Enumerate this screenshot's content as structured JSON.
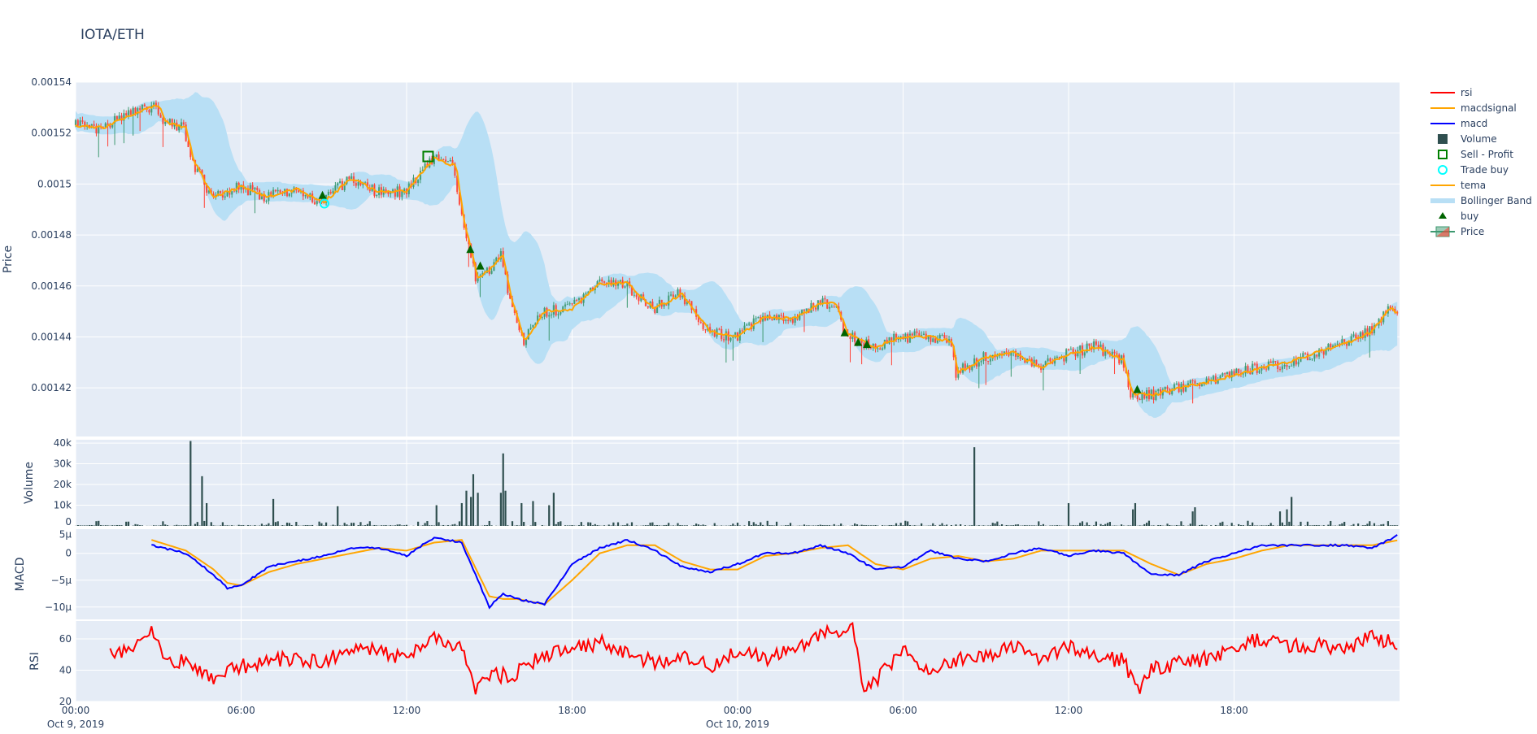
{
  "title": "IOTA/ETH",
  "colors": {
    "plot_bg": "#e5ecf6",
    "grid": "#ffffff",
    "increasing": "#3D9970",
    "decreasing": "#FF4136",
    "tema": "#FFA500",
    "macdsignal": "#FFA500",
    "macd": "#0000FF",
    "rsi": "#FF0000",
    "bollinger": "#b8dff5",
    "volume": "#2F4F4F",
    "buy": "#006400",
    "sell_profit": "#008000",
    "trade_buy": "#00FFFF"
  },
  "legend": {
    "placement": "right",
    "items": [
      {
        "label": "rsi",
        "icon": "line",
        "color": "#FF0000"
      },
      {
        "label": "macdsignal",
        "icon": "line",
        "color": "#FFA500"
      },
      {
        "label": "macd",
        "icon": "line",
        "color": "#0000FF"
      },
      {
        "label": "Volume",
        "icon": "square-filled",
        "color": "#2F4F4F"
      },
      {
        "label": "Sell - Profit",
        "icon": "square-open",
        "color": "#008000"
      },
      {
        "label": "Trade buy",
        "icon": "circle-open",
        "color": "#00FFFF"
      },
      {
        "label": "tema",
        "icon": "line",
        "color": "#FFA500"
      },
      {
        "label": "Bollinger Band",
        "icon": "band",
        "color": "#b8dff5"
      },
      {
        "label": "buy",
        "icon": "triangle-up",
        "color": "#006400"
      },
      {
        "label": "Price",
        "icon": "candlestick",
        "color": "#3D9970"
      }
    ]
  },
  "chart_data": {
    "type": "candlestick",
    "interval": "5m",
    "x_range": [
      "Oct 9, 2019 00:00",
      "Oct 11, 2019 00:00"
    ],
    "x_ticks": [
      {
        "time": "00:00",
        "date": "Oct 9, 2019",
        "hour": 0
      },
      {
        "time": "06:00",
        "date": "",
        "hour": 6
      },
      {
        "time": "12:00",
        "date": "",
        "hour": 12
      },
      {
        "time": "18:00",
        "date": "",
        "hour": 18
      },
      {
        "time": "00:00",
        "date": "Oct 10, 2019",
        "hour": 24
      },
      {
        "time": "06:00",
        "date": "",
        "hour": 30
      },
      {
        "time": "12:00",
        "date": "",
        "hour": 36
      },
      {
        "time": "18:00",
        "date": "",
        "hour": 42
      }
    ],
    "panels": {
      "price": {
        "ylabel": "Price",
        "ylim": [
          0.0014009,
          0.00154
        ],
        "ticks": [
          "0.00142",
          "0.00144",
          "0.00146",
          "0.00148",
          "0.0015",
          "0.00152",
          "0.00154"
        ],
        "tick_values": [
          0.00142,
          0.00144,
          0.00146,
          0.00148,
          0.0015,
          0.00152,
          0.00154
        ]
      },
      "volume": {
        "ylabel": "Volume",
        "ylim": [
          0,
          41600
        ],
        "ticks": [
          "0",
          "10k",
          "20k",
          "30k",
          "40k"
        ],
        "tick_values": [
          0,
          10000,
          20000,
          30000,
          40000
        ]
      },
      "macd": {
        "ylabel": "MACD",
        "ylim": [
          -12.3,
          4.5
        ],
        "unit": "μ",
        "ticks": [
          "5μ",
          "0",
          "−5μ",
          "−10μ"
        ],
        "tick_values": [
          5,
          0,
          -5,
          -10
        ]
      },
      "rsi": {
        "ylabel": "RSI",
        "ylim": [
          20,
          71.4
        ],
        "ticks": [
          "20",
          "40",
          "60"
        ],
        "tick_values": [
          20,
          40,
          60
        ]
      }
    },
    "price_hourly": [
      [
        0,
        0.001523
      ],
      [
        1,
        0.001522
      ],
      [
        2,
        0.001527
      ],
      [
        3,
        0.001531
      ],
      [
        3.3,
        0.001524
      ],
      [
        4,
        0.001522
      ],
      [
        4.3,
        0.001509
      ],
      [
        5,
        0.001495
      ],
      [
        6,
        0.001499
      ],
      [
        7,
        0.001495
      ],
      [
        8,
        0.001498
      ],
      [
        9,
        0.001493
      ],
      [
        10,
        0.001502
      ],
      [
        11,
        0.001497
      ],
      [
        12,
        0.001497
      ],
      [
        13,
        0.00151
      ],
      [
        13.8,
        0.001507
      ],
      [
        14.1,
        0.001485
      ],
      [
        14.6,
        0.001463
      ],
      [
        15,
        0.001466
      ],
      [
        15.5,
        0.001472
      ],
      [
        15.8,
        0.001455
      ],
      [
        16.3,
        0.001438
      ],
      [
        17,
        0.00145
      ],
      [
        18,
        0.001451
      ],
      [
        19,
        0.001461
      ],
      [
        20,
        0.001461
      ],
      [
        21,
        0.001451
      ],
      [
        22,
        0.001457
      ],
      [
        23,
        0.001442
      ],
      [
        24,
        0.00144
      ],
      [
        25,
        0.001448
      ],
      [
        26,
        0.001447
      ],
      [
        27,
        0.001453
      ],
      [
        27.6,
        0.001453
      ],
      [
        28,
        0.001441
      ],
      [
        29,
        0.001436
      ],
      [
        30,
        0.00144
      ],
      [
        31,
        0.00144
      ],
      [
        31.8,
        0.001438
      ],
      [
        32,
        0.001426
      ],
      [
        33,
        0.001432
      ],
      [
        34,
        0.001434
      ],
      [
        35,
        0.001428
      ],
      [
        36,
        0.001433
      ],
      [
        37,
        0.001436
      ],
      [
        38,
        0.001431
      ],
      [
        38.3,
        0.001418
      ],
      [
        39,
        0.001417
      ],
      [
        40,
        0.00142
      ],
      [
        41,
        0.001422
      ],
      [
        42,
        0.001425
      ],
      [
        43,
        0.001428
      ],
      [
        44,
        0.00143
      ],
      [
        45,
        0.001434
      ],
      [
        46,
        0.001437
      ],
      [
        47,
        0.001442
      ],
      [
        47.7,
        0.001452
      ],
      [
        48,
        0.001448
      ]
    ],
    "volume_spikes": [
      [
        4.15,
        41000
      ],
      [
        4.55,
        24000
      ],
      [
        4.75,
        11000
      ],
      [
        7.2,
        13000
      ],
      [
        9.5,
        9500
      ],
      [
        13.1,
        10000
      ],
      [
        14.0,
        11000
      ],
      [
        14.15,
        17000
      ],
      [
        14.3,
        14000
      ],
      [
        14.45,
        25000
      ],
      [
        14.6,
        16000
      ],
      [
        15.4,
        16000
      ],
      [
        15.5,
        35000
      ],
      [
        15.6,
        17000
      ],
      [
        16.6,
        12000
      ],
      [
        16.2,
        11000
      ],
      [
        17.2,
        10000
      ],
      [
        17.3,
        16000
      ],
      [
        32.6,
        38000
      ],
      [
        36.0,
        11000
      ],
      [
        38.3,
        8000
      ],
      [
        38.4,
        11000
      ],
      [
        40.5,
        7000
      ],
      [
        40.6,
        9000
      ],
      [
        43.7,
        7000
      ],
      [
        43.9,
        8000
      ],
      [
        44.1,
        14000
      ]
    ],
    "macd_hourly": [
      [
        2.75,
        1.5,
        2.5
      ],
      [
        4,
        0,
        0.5
      ],
      [
        5,
        -4,
        -3
      ],
      [
        5.5,
        -6.5,
        -5.5
      ],
      [
        6,
        -6,
        -6
      ],
      [
        7,
        -2.5,
        -3.5
      ],
      [
        8,
        -1.5,
        -2
      ],
      [
        9,
        -0.5,
        -1
      ],
      [
        10,
        1,
        0
      ],
      [
        11,
        1,
        1
      ],
      [
        12,
        -0.5,
        0.5
      ],
      [
        13,
        3,
        2
      ],
      [
        14,
        2,
        2.5
      ],
      [
        15,
        -10,
        -8
      ],
      [
        15.5,
        -7.5,
        -8.5
      ],
      [
        16,
        -8.5,
        -8.5
      ],
      [
        17,
        -9.5,
        -9.5
      ],
      [
        18,
        -2,
        -5
      ],
      [
        19,
        1,
        0
      ],
      [
        20,
        2.5,
        1.5
      ],
      [
        21,
        0.5,
        1.5
      ],
      [
        22,
        -2.5,
        -1.5
      ],
      [
        23,
        -3.5,
        -3
      ],
      [
        24,
        -2,
        -3
      ],
      [
        25,
        0,
        -0.5
      ],
      [
        26,
        0,
        0
      ],
      [
        27,
        1.5,
        1
      ],
      [
        28,
        0,
        1.5
      ],
      [
        29,
        -3,
        -2
      ],
      [
        30,
        -2.5,
        -3
      ],
      [
        31,
        0.5,
        -1
      ],
      [
        32,
        -1,
        -0.5
      ],
      [
        33,
        -1.5,
        -1.5
      ],
      [
        34,
        0,
        -1
      ],
      [
        35,
        1,
        0.5
      ],
      [
        36,
        -0.5,
        0.5
      ],
      [
        37,
        0.5,
        0.5
      ],
      [
        38,
        0,
        0.5
      ],
      [
        39,
        -4,
        -2
      ],
      [
        40,
        -4,
        -4
      ],
      [
        41,
        -1.5,
        -2
      ],
      [
        42,
        0,
        -1
      ],
      [
        43,
        1.5,
        0.5
      ],
      [
        44,
        1.5,
        1.5
      ],
      [
        45,
        1.5,
        1.5
      ],
      [
        46,
        1.5,
        1.5
      ],
      [
        47,
        1,
        1.5
      ],
      [
        48,
        3.5,
        2.5
      ]
    ],
    "rsi_hourly": [
      [
        1.2,
        50
      ],
      [
        2,
        55
      ],
      [
        2.8,
        64
      ],
      [
        3.2,
        46
      ],
      [
        4,
        45
      ],
      [
        5,
        36
      ],
      [
        6,
        42
      ],
      [
        7,
        46
      ],
      [
        8,
        48
      ],
      [
        9,
        45
      ],
      [
        10,
        55
      ],
      [
        11,
        52
      ],
      [
        12,
        47
      ],
      [
        13,
        62
      ],
      [
        14,
        55
      ],
      [
        14.5,
        28
      ],
      [
        15,
        36
      ],
      [
        16,
        38
      ],
      [
        17,
        50
      ],
      [
        18,
        52
      ],
      [
        19,
        58
      ],
      [
        20,
        52
      ],
      [
        21,
        44
      ],
      [
        22,
        50
      ],
      [
        23,
        42
      ],
      [
        24,
        52
      ],
      [
        25,
        47
      ],
      [
        26,
        54
      ],
      [
        27,
        62
      ],
      [
        27.2,
        66
      ],
      [
        28.2,
        66
      ],
      [
        28.5,
        30
      ],
      [
        29,
        33
      ],
      [
        30,
        52
      ],
      [
        31,
        40
      ],
      [
        32,
        46
      ],
      [
        33,
        50
      ],
      [
        34,
        55
      ],
      [
        35,
        48
      ],
      [
        36,
        55
      ],
      [
        37,
        48
      ],
      [
        38,
        46
      ],
      [
        38.5,
        27
      ],
      [
        39,
        40
      ],
      [
        40,
        45
      ],
      [
        41,
        47
      ],
      [
        42,
        54
      ],
      [
        43,
        60
      ],
      [
        44,
        55
      ],
      [
        45,
        56
      ],
      [
        46,
        52
      ],
      [
        47,
        62
      ],
      [
        48,
        55
      ]
    ],
    "markers": {
      "buy": [
        [
          8.95,
          0.0014954
        ],
        [
          14.31,
          0.0014742
        ],
        [
          14.67,
          0.0014677
        ],
        [
          27.88,
          0.0014415
        ],
        [
          28.37,
          0.0014377
        ],
        [
          28.69,
          0.0014369
        ],
        [
          38.49,
          0.0014192
        ]
      ],
      "trade_buy": [
        [
          9.02,
          0.0014923
        ]
      ],
      "sell_profit": [
        [
          12.78,
          0.0015108
        ]
      ]
    }
  }
}
